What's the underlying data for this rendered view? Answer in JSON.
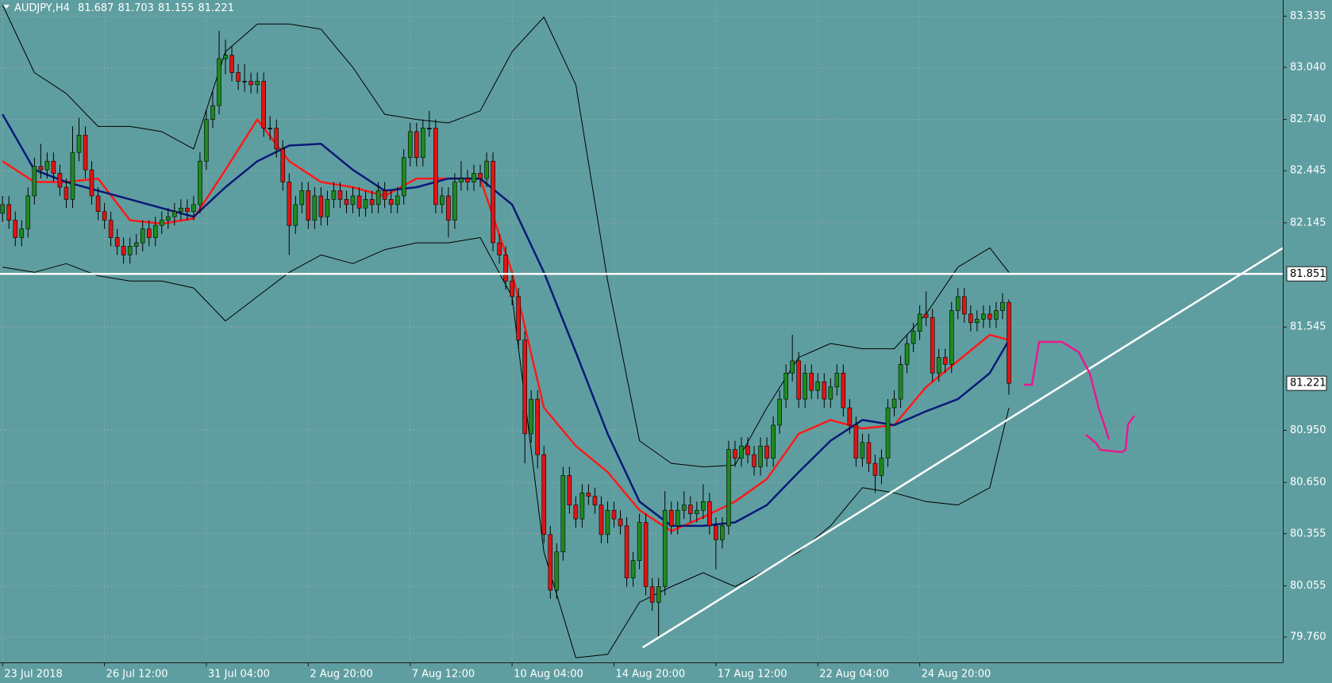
{
  "chart_data": {
    "type": "candlestick",
    "title": "AUDJPY,H4",
    "categories": [
      "23 Jul 2018",
      null,
      null,
      null,
      null,
      null,
      null,
      null,
      null,
      null,
      null,
      null,
      null,
      null,
      null,
      null,
      "26 Jul 12:00",
      null,
      null,
      null,
      null,
      null,
      null,
      null,
      null,
      null,
      null,
      null,
      null,
      null,
      null,
      null,
      "31 Jul 04:00",
      null,
      null,
      null,
      null,
      null,
      null,
      null,
      null,
      null,
      null,
      null,
      null,
      null,
      null,
      null,
      "2 Aug 20:00",
      null,
      null,
      null,
      null,
      null,
      null,
      null,
      null,
      null,
      null,
      null,
      null,
      null,
      null,
      null,
      "7 Aug 12:00",
      null,
      null,
      null,
      null,
      null,
      null,
      null,
      null,
      null,
      null,
      null,
      null,
      null,
      null,
      null,
      "10 Aug 04:00",
      null,
      null,
      null,
      null,
      null,
      null,
      null,
      null,
      null,
      null,
      null,
      null,
      null,
      null,
      null,
      "14 Aug 20:00",
      null,
      null,
      null,
      null,
      null,
      null,
      null,
      null,
      null,
      null,
      null,
      null,
      null,
      null,
      null,
      "17 Aug 12:00",
      null,
      null,
      null,
      null,
      null,
      null,
      null,
      null,
      null,
      null,
      null,
      null,
      null,
      null,
      null,
      "22 Aug 04:00",
      null,
      null,
      null,
      null,
      null,
      null,
      null,
      null,
      null,
      null,
      null,
      null,
      null,
      null,
      null,
      "24 Aug 20:00",
      null,
      null,
      null,
      null,
      null,
      null,
      null,
      null,
      null,
      null,
      null,
      null,
      null,
      null
    ],
    "open": [
      82.2,
      82.25,
      82.16,
      82.06,
      82.11,
      82.3,
      82.47,
      82.45,
      82.5,
      82.43,
      82.35,
      82.28,
      82.55,
      82.65,
      82.45,
      82.3,
      82.21,
      82.16,
      82.06,
      82.01,
      81.96,
      82.01,
      82.03,
      82.11,
      82.06,
      82.13,
      82.16,
      82.18,
      82.21,
      82.23,
      82.21,
      82.25,
      82.5,
      82.74,
      82.82,
      83.09,
      83.11,
      83.01,
      82.96,
      82.96,
      82.94,
      82.96,
      82.69,
      82.69,
      82.57,
      82.38,
      82.13,
      82.25,
      82.33,
      82.16,
      82.3,
      82.18,
      82.28,
      82.33,
      82.28,
      82.25,
      82.3,
      82.23,
      82.28,
      82.25,
      82.33,
      82.28,
      82.25,
      82.3,
      82.52,
      82.67,
      82.52,
      82.69,
      82.69,
      82.25,
      82.3,
      82.16,
      82.38,
      82.4,
      82.38,
      82.43,
      82.4,
      82.5,
      82.03,
      81.96,
      81.81,
      81.72,
      81.47,
      80.93,
      81.13,
      80.81,
      80.35,
      80.03,
      80.25,
      80.69,
      80.52,
      80.44,
      80.59,
      80.57,
      80.52,
      80.35,
      80.49,
      80.44,
      80.4,
      80.1,
      80.2,
      80.42,
      80.05,
      79.96,
      80.05,
      80.49,
      80.4,
      80.49,
      80.52,
      80.47,
      80.49,
      80.54,
      80.4,
      80.32,
      80.4,
      80.84,
      80.79,
      80.86,
      80.81,
      80.74,
      80.86,
      80.79,
      80.98,
      81.13,
      81.28,
      81.35,
      81.13,
      81.28,
      81.18,
      81.23,
      81.13,
      81.2,
      81.28,
      81.08,
      80.98,
      80.79,
      80.88,
      80.76,
      80.69,
      80.79,
      81.08,
      81.13,
      81.33,
      81.45,
      81.52,
      81.62,
      81.6,
      81.28,
      81.37,
      81.33,
      81.64,
      81.72,
      81.62,
      81.57,
      81.59,
      81.62,
      81.59,
      81.64,
      81.687
    ],
    "high": [
      82.3,
      82.3,
      82.21,
      82.16,
      82.35,
      82.52,
      82.6,
      82.55,
      82.55,
      82.48,
      82.4,
      82.7,
      82.75,
      82.7,
      82.5,
      82.35,
      82.26,
      82.21,
      82.11,
      82.06,
      82.06,
      82.08,
      82.16,
      82.16,
      82.18,
      82.21,
      82.23,
      82.26,
      82.28,
      82.28,
      82.3,
      82.55,
      82.8,
      82.9,
      83.25,
      83.2,
      83.16,
      83.06,
      83.06,
      83.01,
      83.01,
      83.01,
      82.76,
      82.74,
      82.62,
      82.43,
      82.3,
      82.38,
      82.38,
      82.35,
      82.35,
      82.33,
      82.38,
      82.38,
      82.33,
      82.35,
      82.35,
      82.33,
      82.33,
      82.38,
      82.38,
      82.33,
      82.35,
      82.57,
      82.72,
      82.72,
      82.74,
      82.79,
      82.74,
      82.35,
      82.35,
      82.43,
      82.5,
      82.45,
      82.48,
      82.48,
      82.55,
      82.55,
      82.08,
      82.01,
      81.86,
      81.77,
      81.52,
      81.18,
      81.18,
      80.86,
      80.4,
      80.3,
      80.74,
      80.74,
      80.57,
      80.64,
      80.64,
      80.62,
      80.57,
      80.54,
      80.54,
      80.49,
      80.45,
      80.25,
      80.47,
      80.47,
      80.1,
      80.1,
      80.6,
      80.54,
      80.54,
      80.6,
      80.57,
      80.54,
      80.64,
      80.59,
      80.45,
      80.45,
      80.89,
      80.89,
      80.91,
      80.91,
      80.86,
      80.91,
      80.91,
      81.03,
      81.18,
      81.33,
      81.5,
      81.4,
      81.33,
      81.33,
      81.28,
      81.28,
      81.25,
      81.33,
      81.33,
      81.13,
      81.03,
      80.93,
      80.93,
      80.81,
      80.84,
      81.13,
      81.18,
      81.38,
      81.5,
      81.57,
      81.67,
      81.75,
      81.65,
      81.42,
      81.42,
      81.69,
      81.77,
      81.77,
      81.67,
      81.64,
      81.67,
      81.67,
      81.69,
      81.74,
      81.703
    ],
    "low": [
      82.15,
      82.11,
      82.01,
      82.01,
      82.06,
      82.25,
      82.4,
      82.4,
      82.38,
      82.3,
      82.23,
      82.23,
      82.5,
      82.4,
      82.25,
      82.16,
      82.11,
      82.01,
      81.96,
      81.91,
      81.91,
      81.96,
      81.98,
      82.01,
      82.01,
      82.08,
      82.11,
      82.13,
      82.16,
      82.16,
      82.16,
      82.2,
      82.45,
      82.69,
      82.77,
      83.0,
      82.96,
      82.91,
      82.9,
      82.89,
      82.89,
      82.64,
      82.62,
      82.52,
      82.33,
      81.96,
      82.08,
      82.2,
      82.11,
      82.11,
      82.13,
      82.13,
      82.23,
      82.23,
      82.2,
      82.2,
      82.18,
      82.18,
      82.2,
      82.2,
      82.23,
      82.2,
      82.2,
      82.25,
      82.47,
      82.47,
      82.47,
      82.64,
      82.2,
      82.2,
      82.06,
      82.11,
      82.33,
      82.33,
      82.33,
      82.35,
      82.35,
      81.98,
      81.91,
      81.76,
      81.67,
      81.42,
      80.76,
      80.88,
      80.73,
      80.3,
      79.98,
      79.98,
      80.2,
      80.47,
      80.39,
      80.39,
      80.52,
      80.47,
      80.3,
      80.3,
      80.39,
      80.35,
      80.05,
      80.05,
      80.15,
      80.0,
      79.91,
      79.76,
      80.0,
      80.35,
      80.35,
      80.44,
      80.42,
      80.42,
      80.44,
      80.35,
      80.15,
      80.27,
      80.35,
      80.74,
      80.74,
      80.76,
      80.69,
      80.69,
      80.74,
      80.74,
      80.93,
      81.08,
      81.23,
      81.08,
      81.08,
      81.13,
      81.13,
      81.08,
      81.08,
      81.15,
      81.03,
      80.93,
      80.74,
      80.74,
      80.71,
      80.59,
      80.64,
      80.74,
      81.03,
      81.08,
      81.28,
      81.4,
      81.47,
      81.55,
      81.23,
      81.23,
      81.28,
      81.28,
      81.59,
      81.57,
      81.52,
      81.52,
      81.54,
      81.54,
      81.54,
      81.59,
      81.155
    ],
    "close": [
      82.25,
      82.16,
      82.06,
      82.11,
      82.3,
      82.47,
      82.45,
      82.5,
      82.43,
      82.35,
      82.28,
      82.55,
      82.65,
      82.45,
      82.3,
      82.21,
      82.16,
      82.06,
      82.01,
      81.96,
      82.01,
      82.03,
      82.11,
      82.06,
      82.13,
      82.16,
      82.18,
      82.21,
      82.23,
      82.21,
      82.25,
      82.5,
      82.74,
      82.82,
      83.09,
      83.11,
      83.01,
      82.96,
      82.96,
      82.94,
      82.96,
      82.69,
      82.69,
      82.57,
      82.38,
      82.13,
      82.25,
      82.33,
      82.16,
      82.3,
      82.18,
      82.28,
      82.33,
      82.28,
      82.25,
      82.3,
      82.23,
      82.28,
      82.25,
      82.33,
      82.28,
      82.25,
      82.3,
      82.52,
      82.67,
      82.52,
      82.69,
      82.69,
      82.25,
      82.3,
      82.16,
      82.38,
      82.4,
      82.38,
      82.43,
      82.4,
      82.5,
      82.03,
      81.96,
      81.81,
      81.72,
      81.47,
      80.93,
      81.13,
      80.81,
      80.35,
      80.03,
      80.25,
      80.69,
      80.52,
      80.44,
      80.59,
      80.57,
      80.52,
      80.35,
      80.49,
      80.44,
      80.4,
      80.1,
      80.2,
      80.42,
      80.05,
      79.96,
      80.05,
      80.49,
      80.4,
      80.49,
      80.52,
      80.47,
      80.49,
      80.54,
      80.4,
      80.32,
      80.4,
      80.84,
      80.79,
      80.86,
      80.81,
      80.74,
      80.86,
      80.79,
      80.98,
      81.13,
      81.28,
      81.35,
      81.13,
      81.28,
      81.18,
      81.23,
      81.13,
      81.2,
      81.28,
      81.08,
      80.98,
      80.79,
      80.88,
      80.76,
      80.69,
      80.79,
      81.08,
      81.13,
      81.33,
      81.45,
      81.52,
      81.62,
      81.6,
      81.28,
      81.37,
      81.33,
      81.64,
      81.72,
      81.62,
      81.57,
      81.59,
      81.62,
      81.59,
      81.64,
      81.687,
      81.221
    ],
    "up_color": "#1f8a1f",
    "down_color": "#e01414",
    "wick_color": "#000000",
    "series": [
      {
        "color": "#ff1a1a",
        "x": [
          0,
          5,
          10,
          15,
          20,
          25,
          30,
          35,
          40,
          45,
          50,
          55,
          60,
          65,
          70,
          75,
          80,
          85,
          90,
          95,
          100,
          105,
          110,
          115,
          120,
          125,
          130,
          135,
          140,
          145,
          150,
          155,
          158
        ],
        "values": [
          82.5,
          82.38,
          82.38,
          82.4,
          82.16,
          82.14,
          82.17,
          82.45,
          82.74,
          82.5,
          82.38,
          82.35,
          82.3,
          82.4,
          82.4,
          82.4,
          81.86,
          81.08,
          80.86,
          80.71,
          80.49,
          80.37,
          80.45,
          80.54,
          80.67,
          80.93,
          81.01,
          80.96,
          80.98,
          81.2,
          81.35,
          81.5,
          81.47
        ]
      },
      {
        "color": "#0a1a78",
        "x": [
          0,
          5,
          10,
          15,
          20,
          25,
          30,
          35,
          40,
          45,
          50,
          55,
          60,
          65,
          70,
          75,
          80,
          85,
          90,
          95,
          100,
          105,
          110,
          115,
          120,
          125,
          130,
          135,
          140,
          145,
          150,
          155,
          158
        ],
        "values": [
          82.77,
          82.45,
          82.38,
          82.33,
          82.28,
          82.23,
          82.18,
          82.35,
          82.5,
          82.59,
          82.6,
          82.45,
          82.33,
          82.35,
          82.4,
          82.4,
          82.25,
          81.86,
          81.4,
          80.93,
          80.54,
          80.4,
          80.4,
          80.42,
          80.52,
          80.71,
          80.89,
          81.01,
          80.98,
          81.06,
          81.13,
          81.28,
          81.47
        ]
      },
      {
        "color": "#000000",
        "x": [
          0,
          5,
          10,
          15,
          20,
          25,
          30,
          35,
          40,
          45,
          50,
          55,
          60,
          65,
          70,
          75,
          80,
          85,
          90,
          95,
          100,
          105,
          110,
          115,
          120,
          125,
          130,
          135,
          140,
          145,
          150,
          155,
          158
        ],
        "values": [
          83.4,
          83.01,
          82.89,
          82.7,
          82.7,
          82.67,
          82.57,
          83.13,
          83.29,
          83.29,
          83.26,
          83.04,
          82.77,
          82.74,
          82.72,
          82.79,
          83.13,
          83.33,
          82.94,
          81.81,
          80.89,
          80.76,
          80.74,
          80.75,
          81.08,
          81.37,
          81.45,
          81.42,
          81.42,
          81.62,
          81.89,
          82.0,
          81.86
        ]
      },
      {
        "color": "#000000",
        "x": [
          0,
          5,
          10,
          15,
          20,
          25,
          30,
          35,
          40,
          45,
          50,
          55,
          60,
          65,
          70,
          75,
          80,
          85,
          90,
          95,
          100,
          105,
          110,
          115,
          120,
          125,
          130,
          135,
          140,
          145,
          150,
          155,
          158
        ],
        "values": [
          81.89,
          81.86,
          81.91,
          81.84,
          81.81,
          81.81,
          81.77,
          81.58,
          81.72,
          81.86,
          81.96,
          81.91,
          81.99,
          82.03,
          82.03,
          82.06,
          81.72,
          80.25,
          79.64,
          79.66,
          79.96,
          80.05,
          80.13,
          80.05,
          80.15,
          80.25,
          80.4,
          80.62,
          80.59,
          80.54,
          80.52,
          80.62,
          81.08
        ]
      }
    ],
    "hlines": [
      81.851
    ],
    "trendlines": [
      {
        "x": [
          100.5,
          201.0
        ],
        "values": [
          79.7,
          82.0
        ]
      }
    ],
    "drawing_color": "#ffffff",
    "xlim": [
      -0.4,
      201.0
    ],
    "ylim": [
      79.614,
      83.428
    ],
    "yticks": [
      83.335,
      {
        "value": 83.04,
        "label": "83.040"
      },
      {
        "value": 82.74,
        "label": "82.740"
      },
      82.445,
      82.145,
      81.545,
      {
        "value": 80.95,
        "label": "80.950"
      },
      {
        "value": 80.65,
        "label": "80.650"
      },
      80.355,
      80.055,
      {
        "value": 79.76,
        "label": "79.760"
      }
    ],
    "grid": true
  }
}
